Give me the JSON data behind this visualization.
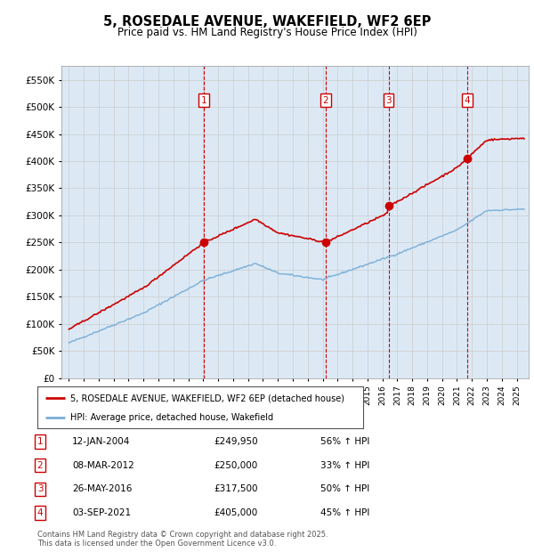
{
  "title": "5, ROSEDALE AVENUE, WAKEFIELD, WF2 6EP",
  "subtitle": "Price paid vs. HM Land Registry's House Price Index (HPI)",
  "plot_bg_color": "#dce9f5",
  "sales": [
    {
      "date_float": 2004.04,
      "price": 249950,
      "label": "1"
    },
    {
      "date_float": 2012.19,
      "price": 250000,
      "label": "2"
    },
    {
      "date_float": 2016.41,
      "price": 317500,
      "label": "3"
    },
    {
      "date_float": 2021.67,
      "price": 405000,
      "label": "4"
    }
  ],
  "sale_table": [
    {
      "num": "1",
      "date": "12-JAN-2004",
      "price": "£249,950",
      "change": "56% ↑ HPI"
    },
    {
      "num": "2",
      "date": "08-MAR-2012",
      "price": "£250,000",
      "change": "33% ↑ HPI"
    },
    {
      "num": "3",
      "date": "26-MAY-2016",
      "price": "£317,500",
      "change": "50% ↑ HPI"
    },
    {
      "num": "4",
      "date": "03-SEP-2021",
      "price": "£405,000",
      "change": "45% ↑ HPI"
    }
  ],
  "legend_entries": [
    {
      "label": "5, ROSEDALE AVENUE, WAKEFIELD, WF2 6EP (detached house)",
      "color": "#cc0000"
    },
    {
      "label": "HPI: Average price, detached house, Wakefield",
      "color": "#7aaed6"
    }
  ],
  "yticks": [
    0,
    50000,
    100000,
    150000,
    200000,
    250000,
    300000,
    350000,
    400000,
    450000,
    500000,
    550000
  ],
  "ytick_labels": [
    "£0",
    "£50K",
    "£100K",
    "£150K",
    "£200K",
    "£250K",
    "£300K",
    "£350K",
    "£400K",
    "£450K",
    "£500K",
    "£550K"
  ],
  "ylim": [
    0,
    575000
  ],
  "xlim": [
    1994.5,
    2025.8
  ],
  "footer": "Contains HM Land Registry data © Crown copyright and database right 2025.\nThis data is licensed under the Open Government Licence v3.0.",
  "red_line_color": "#cc0000",
  "blue_line_color": "#7aaed6",
  "dashed_line_color": "#cc0000",
  "grid_color": "#cccccc",
  "marker_box_color": "#cc0000"
}
